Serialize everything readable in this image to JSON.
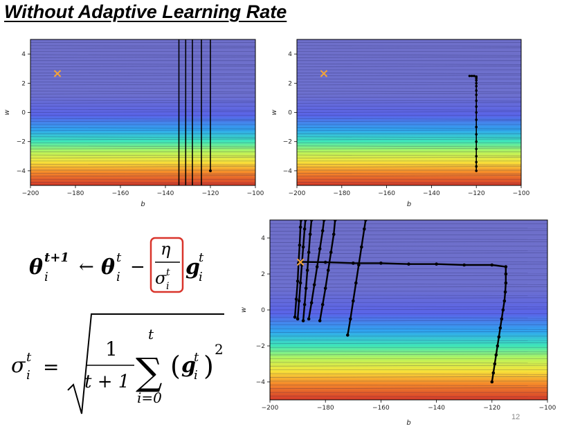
{
  "slide": {
    "title": "Without Adaptive Learning Rate",
    "page_number": "12"
  },
  "colors": {
    "contour_top": "#6d6fcc",
    "marker": "#f2a33a",
    "path": "#000000",
    "formula_highlight": "#d9342b"
  },
  "formula": {
    "update": {
      "theta": "θ",
      "sub_i": "i",
      "sup_t1": "t+1",
      "arrow": "←",
      "sup_t": "t",
      "minus": "−",
      "eta": "η",
      "sigma": "σ",
      "g": "g"
    },
    "sigma_def": {
      "sigma": "σ",
      "sub_i": "i",
      "sup_t": "t",
      "equals": "=",
      "one": "1",
      "denom": "t + 1",
      "sum": "∑",
      "sum_top": "t",
      "sum_bottom": "i=0",
      "g": "g",
      "lparen": "(",
      "rparen": ")",
      "square": "2"
    }
  },
  "chart_data": [
    {
      "type": "contour",
      "xlabel": "b",
      "ylabel": "w",
      "xlim": [
        -200,
        -100
      ],
      "ylim": [
        -5,
        5
      ],
      "xticks": [
        "−200",
        "−180",
        "−160",
        "−140",
        "−120",
        "−100"
      ],
      "yticks": [
        "4",
        "2",
        "0",
        "−2",
        "−4"
      ],
      "marker": {
        "symbol": "×",
        "b": -188,
        "w": 2.67
      },
      "paths": [
        [
          [
            -120,
            -4
          ],
          [
            -120,
            5
          ]
        ],
        [
          [
            -124,
            -5
          ],
          [
            -124,
            5
          ]
        ],
        [
          [
            -128,
            -5
          ],
          [
            -128,
            5
          ]
        ],
        [
          [
            -131,
            -5
          ],
          [
            -131,
            5
          ]
        ],
        [
          [
            -134,
            -5
          ],
          [
            -134,
            5
          ]
        ]
      ]
    },
    {
      "type": "contour",
      "xlabel": "b",
      "ylabel": "w",
      "xlim": [
        -200,
        -100
      ],
      "ylim": [
        -5,
        5
      ],
      "xticks": [
        "−200",
        "−180",
        "−160",
        "−140",
        "−120",
        "−100"
      ],
      "yticks": [
        "4",
        "2",
        "0",
        "−2",
        "−4"
      ],
      "marker": {
        "symbol": "×",
        "b": -188,
        "w": 2.67
      },
      "paths": [
        [
          [
            -120,
            -4
          ],
          [
            -120,
            -3.7
          ],
          [
            -120,
            -3.4
          ],
          [
            -120,
            -3
          ],
          [
            -120,
            -2.5
          ],
          [
            -120,
            -2
          ],
          [
            -120,
            -1.5
          ],
          [
            -120,
            -1
          ],
          [
            -120,
            -0.5
          ],
          [
            -120,
            0
          ],
          [
            -120,
            0.4
          ],
          [
            -120,
            0.8
          ],
          [
            -120,
            1.2
          ],
          [
            -120,
            1.5
          ],
          [
            -120,
            1.8
          ],
          [
            -120,
            2
          ],
          [
            -120,
            2.2
          ],
          [
            -120,
            2.35
          ],
          [
            -120,
            2.45
          ],
          [
            -121,
            2.5
          ],
          [
            -122,
            2.5
          ],
          [
            -123,
            2.5
          ]
        ]
      ]
    },
    {
      "type": "contour",
      "xlabel": "b",
      "ylabel": "w",
      "xlim": [
        -200,
        -100
      ],
      "ylim": [
        -5,
        5
      ],
      "xticks": [
        "−200",
        "−180",
        "−160",
        "−140",
        "−120",
        "−100"
      ],
      "yticks": [
        "4",
        "2",
        "0",
        "−2",
        "−4"
      ],
      "marker": {
        "symbol": "×",
        "b": -189,
        "w": 2.67
      },
      "paths": [
        [
          [
            -120,
            -4
          ],
          [
            -119.5,
            -3.5
          ],
          [
            -119,
            -3
          ],
          [
            -118.5,
            -2.5
          ],
          [
            -118,
            -2
          ],
          [
            -117.5,
            -1.5
          ],
          [
            -117,
            -1
          ],
          [
            -116.5,
            -0.5
          ],
          [
            -116,
            0
          ],
          [
            -115.5,
            0.5
          ],
          [
            -115.2,
            1
          ],
          [
            -115,
            1.5
          ],
          [
            -115,
            2
          ],
          [
            -115,
            2.4
          ],
          [
            -120,
            2.5
          ],
          [
            -130,
            2.5
          ],
          [
            -140,
            2.55
          ],
          [
            -150,
            2.55
          ],
          [
            -160,
            2.6
          ],
          [
            -170,
            2.6
          ],
          [
            -180,
            2.65
          ],
          [
            -189,
            2.67
          ]
        ],
        [
          [
            -172,
            -1.4
          ],
          [
            -171,
            -0.5
          ],
          [
            -170,
            0.5
          ],
          [
            -169,
            1.5
          ],
          [
            -168,
            2.5
          ],
          [
            -167,
            3.5
          ],
          [
            -166,
            4.5
          ],
          [
            -165.5,
            5
          ]
        ],
        [
          [
            -182,
            -0.6
          ],
          [
            -181,
            0.3
          ],
          [
            -180,
            1.2
          ],
          [
            -179,
            2.2
          ],
          [
            -178,
            3.2
          ],
          [
            -177,
            4.2
          ],
          [
            -176.5,
            5
          ]
        ],
        [
          [
            -186,
            -0.5
          ],
          [
            -185,
            0.4
          ],
          [
            -184,
            1.4
          ],
          [
            -183,
            2.4
          ],
          [
            -182,
            3.4
          ],
          [
            -181,
            4.4
          ],
          [
            -180.5,
            5
          ]
        ],
        [
          [
            -188,
            -0.6
          ],
          [
            -187.5,
            0.3
          ],
          [
            -187,
            1.2
          ],
          [
            -186.5,
            2.2
          ],
          [
            -186,
            3.2
          ],
          [
            -185.5,
            4.2
          ],
          [
            -185,
            5
          ]
        ],
        [
          [
            -190,
            -0.5
          ],
          [
            -189.5,
            0.5
          ],
          [
            -189,
            1.5
          ],
          [
            -188.5,
            2.5
          ],
          [
            -188,
            3.5
          ],
          [
            -187.5,
            4.5
          ],
          [
            -187.2,
            5
          ]
        ],
        [
          [
            -191,
            -0.4
          ],
          [
            -190.5,
            0.6
          ],
          [
            -190,
            1.6
          ],
          [
            -189.7,
            2.6
          ],
          [
            -189.3,
            3.6
          ],
          [
            -189,
            4.6
          ],
          [
            -188.8,
            5
          ]
        ]
      ]
    }
  ]
}
